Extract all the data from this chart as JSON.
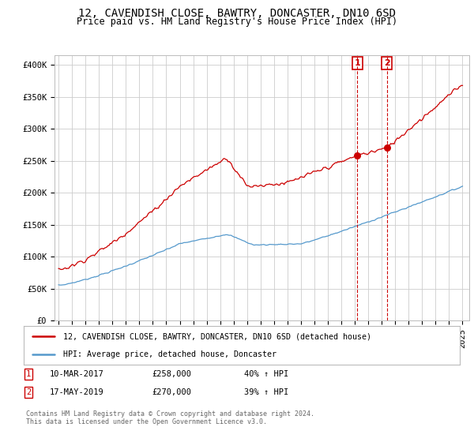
{
  "title": "12, CAVENDISH CLOSE, BAWTRY, DONCASTER, DN10 6SD",
  "subtitle": "Price paid vs. HM Land Registry's House Price Index (HPI)",
  "ylabel_ticks": [
    "£0",
    "£50K",
    "£100K",
    "£150K",
    "£200K",
    "£250K",
    "£300K",
    "£350K",
    "£400K"
  ],
  "ytick_values": [
    0,
    50000,
    100000,
    150000,
    200000,
    250000,
    300000,
    350000,
    400000
  ],
  "ylim": [
    0,
    415000
  ],
  "xlim_start": 1994.7,
  "xlim_end": 2025.5,
  "red_line_color": "#cc0000",
  "blue_line_color": "#5599cc",
  "transaction_1": {
    "date_num": 2017.19,
    "price": 258000,
    "label": "1",
    "date_str": "10-MAR-2017",
    "pct": "40%"
  },
  "transaction_2": {
    "date_num": 2019.37,
    "price": 270000,
    "label": "2",
    "date_str": "17-MAY-2019",
    "pct": "39%"
  },
  "legend_red": "12, CAVENDISH CLOSE, BAWTRY, DONCASTER, DN10 6SD (detached house)",
  "legend_blue": "HPI: Average price, detached house, Doncaster",
  "footer": "Contains HM Land Registry data © Crown copyright and database right 2024.\nThis data is licensed under the Open Government Licence v3.0.",
  "background_color": "#ffffff",
  "grid_color": "#cccccc",
  "title_fontsize": 10,
  "subtitle_fontsize": 8.5,
  "tick_fontsize": 7.5,
  "xticks": [
    1995,
    1996,
    1997,
    1998,
    1999,
    2000,
    2001,
    2002,
    2003,
    2004,
    2005,
    2006,
    2007,
    2008,
    2009,
    2010,
    2011,
    2012,
    2013,
    2014,
    2015,
    2016,
    2017,
    2018,
    2019,
    2020,
    2021,
    2022,
    2023,
    2024,
    2025
  ]
}
